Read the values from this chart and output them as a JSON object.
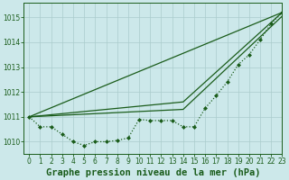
{
  "background_color": "#cce8ea",
  "grid_color": "#aacccc",
  "line_color": "#1a5c1a",
  "title": "Graphe pression niveau de la mer (hPa)",
  "xlim": [
    -0.5,
    23
  ],
  "ylim": [
    1009.5,
    1015.6
  ],
  "yticks": [
    1010,
    1011,
    1012,
    1013,
    1014,
    1015
  ],
  "xticks": [
    0,
    1,
    2,
    3,
    4,
    5,
    6,
    7,
    8,
    9,
    10,
    11,
    12,
    13,
    14,
    15,
    16,
    17,
    18,
    19,
    20,
    21,
    22,
    23
  ],
  "dotted_series": [
    1011.0,
    1010.6,
    1010.6,
    1010.3,
    1010.0,
    1009.85,
    1010.0,
    1010.0,
    1010.05,
    1010.15,
    1010.9,
    1010.85,
    1010.85,
    1010.85,
    1010.6,
    1010.6,
    1011.35,
    1011.85,
    1012.4,
    1013.1,
    1013.5,
    1014.1,
    1014.75,
    1015.2
  ],
  "solid_lines": [
    [
      [
        0,
        23
      ],
      [
        1011.0,
        1015.2
      ]
    ],
    [
      [
        0,
        14,
        23
      ],
      [
        1011.0,
        1011.6,
        1015.2
      ]
    ],
    [
      [
        0,
        14,
        23
      ],
      [
        1011.0,
        1011.3,
        1015.05
      ]
    ]
  ],
  "marker": "D",
  "marker_size": 2.0,
  "linewidth": 0.9,
  "title_fontsize": 7.5,
  "tick_fontsize": 5.5
}
